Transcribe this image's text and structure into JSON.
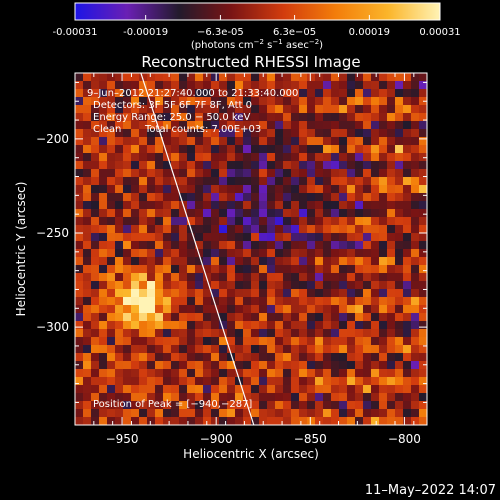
{
  "chart_data": {
    "type": "heatmap",
    "title": "Reconstructed RHESSI Image",
    "xlabel": "Heliocentric X (arcsec)",
    "ylabel": "Heliocentric Y (arcsec)",
    "xlim": [
      -975,
      -788
    ],
    "ylim": [
      -352,
      -165
    ],
    "x_ticks": [
      -950,
      -900,
      -850,
      -800
    ],
    "x_tick_labels": [
      "−950",
      "−900",
      "−850",
      "−800"
    ],
    "y_ticks": [
      -200,
      -250,
      -300
    ],
    "y_tick_labels": [
      "−200",
      "−250",
      "−300"
    ],
    "colorbar": {
      "min": -0.00031,
      "max": 0.00031,
      "tick_values": [
        -0.00031,
        -0.00019,
        -6.3e-05,
        6.3e-05,
        0.00019,
        0.00031
      ],
      "tick_labels": [
        "-0.00031",
        "-0.00019",
        "−6.3e-05",
        "6.3e−05",
        "0.00019",
        "0.00031"
      ],
      "unit_prefix": "(photons cm",
      "unit_exp1": "−2",
      "unit_mid": " s",
      "unit_exp2": "−1",
      "unit_mid2": " asec",
      "unit_exp3": "−2",
      "unit_suffix": ")",
      "colormap": [
        "#1c14e6",
        "#6a1fb4",
        "#231a2c",
        "#7a1414",
        "#d23c0e",
        "#f37d0a",
        "#fbb52a",
        "#fff3b5"
      ]
    },
    "annotations": {
      "time_range": "9–Jun–2012 21:27:40.000 to 21:33:40.000",
      "detectors": "Detectors: 3F 5F 6F 7F 8F, Att 0",
      "energy_range": "Energy Range: 25.0 − 50.0 keV",
      "clean_label": "Clean",
      "total_counts": "Total counts: 7.00E+03",
      "peak_position": "Position of Peak = [−940,−287]"
    },
    "peak": [
      -940,
      -287
    ],
    "limb_line": [
      [
        -940,
        -165
      ],
      [
        -880,
        -352
      ]
    ],
    "grid": false
  },
  "footer": {
    "timestamp": "11–May–2022 14:07"
  }
}
